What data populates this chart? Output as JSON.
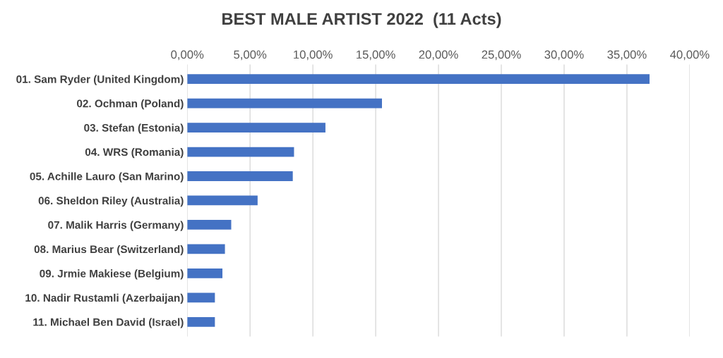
{
  "chart_data": {
    "type": "bar",
    "orientation": "horizontal",
    "title": "BEST MALE ARTIST 2022  (11 Acts)",
    "categories": [
      "01. Sam Ryder (United Kingdom)",
      "02. Ochman (Poland)",
      "03. Stefan (Estonia)",
      "04. WRS (Romania)",
      "05. Achille Lauro (San Marino)",
      "06. Sheldon Riley (Australia)",
      "07. Malik Harris (Germany)",
      "08. Marius Bear (Switzerland)",
      "09. Jrmie Makiese (Belgium)",
      "10. Nadir Rustamli (Azerbaijan)",
      "11. Michael Ben David (Israel)"
    ],
    "values": [
      36.8,
      15.5,
      11.0,
      8.5,
      8.4,
      5.6,
      3.5,
      3.0,
      2.8,
      2.2,
      2.2
    ],
    "color": "#4472c4",
    "xlim": [
      0,
      40
    ],
    "xticks": [
      {
        "value": 0,
        "label": "0,00%"
      },
      {
        "value": 5,
        "label": "5,00%"
      },
      {
        "value": 10,
        "label": "10,00%"
      },
      {
        "value": 15,
        "label": "15,00%"
      },
      {
        "value": 20,
        "label": "20,00%"
      },
      {
        "value": 25,
        "label": "25,00%"
      },
      {
        "value": 30,
        "label": "30,00%"
      },
      {
        "value": 35,
        "label": "35,00%"
      },
      {
        "value": 40,
        "label": "40,00%"
      }
    ],
    "grid": "x",
    "legend": false
  }
}
